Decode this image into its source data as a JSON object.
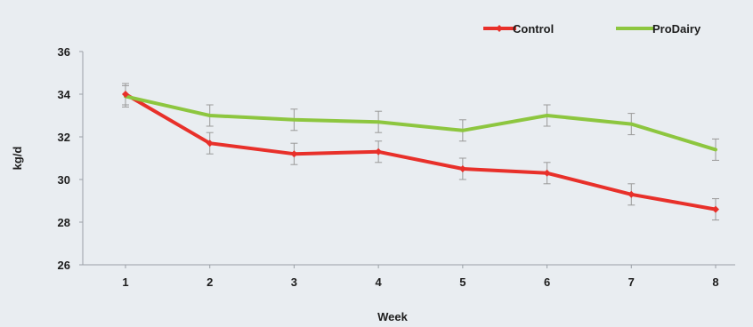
{
  "chart_data": {
    "type": "line",
    "title": "",
    "xlabel": "Week",
    "ylabel": "kg/d",
    "categories": [
      "1",
      "2",
      "3",
      "4",
      "5",
      "6",
      "7",
      "8"
    ],
    "ylim": [
      26,
      36
    ],
    "yticks": [
      "26",
      "28",
      "30",
      "32",
      "34",
      "36"
    ],
    "grid": false,
    "legend_position": "top-right",
    "error_bars": true,
    "series": [
      {
        "name": "Control",
        "color": "#e8302a",
        "marker": "diamond",
        "values": [
          34.0,
          31.7,
          31.2,
          31.3,
          30.5,
          30.3,
          29.3,
          28.6
        ],
        "error": [
          0.5,
          0.5,
          0.5,
          0.5,
          0.5,
          0.5,
          0.5,
          0.5
        ]
      },
      {
        "name": "ProDairy",
        "color": "#8dc63f",
        "marker": "none",
        "values": [
          33.9,
          33.0,
          32.8,
          32.7,
          32.3,
          33.0,
          32.6,
          31.4
        ],
        "error": [
          0.5,
          0.5,
          0.5,
          0.5,
          0.5,
          0.5,
          0.5,
          0.5
        ]
      }
    ]
  }
}
